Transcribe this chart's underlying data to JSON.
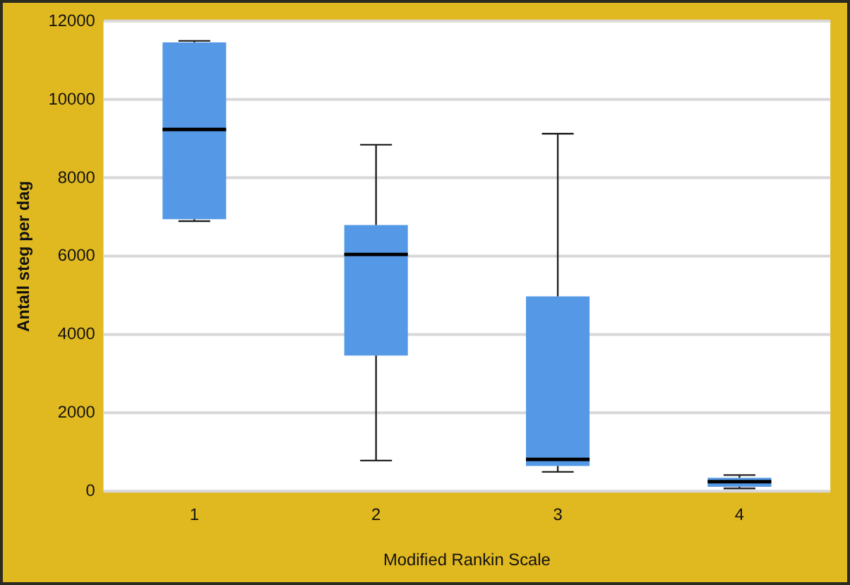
{
  "chart_data": {
    "type": "box",
    "xlabel": "Modified Rankin Scale",
    "ylabel": "Antall steg per dag",
    "categories": [
      "1",
      "2",
      "3",
      "4"
    ],
    "color": "#5599e6",
    "boxes": [
      {
        "low": 6900,
        "q1": 6950,
        "median": 9240,
        "q3": 11460,
        "high": 11500
      },
      {
        "low": 790,
        "q1": 3470,
        "median": 6050,
        "q3": 6800,
        "high": 8850
      },
      {
        "low": 500,
        "q1": 650,
        "median": 820,
        "q3": 4980,
        "high": 9130
      },
      {
        "low": 80,
        "q1": 120,
        "median": 250,
        "q3": 350,
        "high": 420
      }
    ],
    "ylim": [
      0,
      12000
    ],
    "yticks": [
      0,
      2000,
      4000,
      6000,
      8000,
      10000,
      12000
    ],
    "grid": "y",
    "legend": false
  }
}
